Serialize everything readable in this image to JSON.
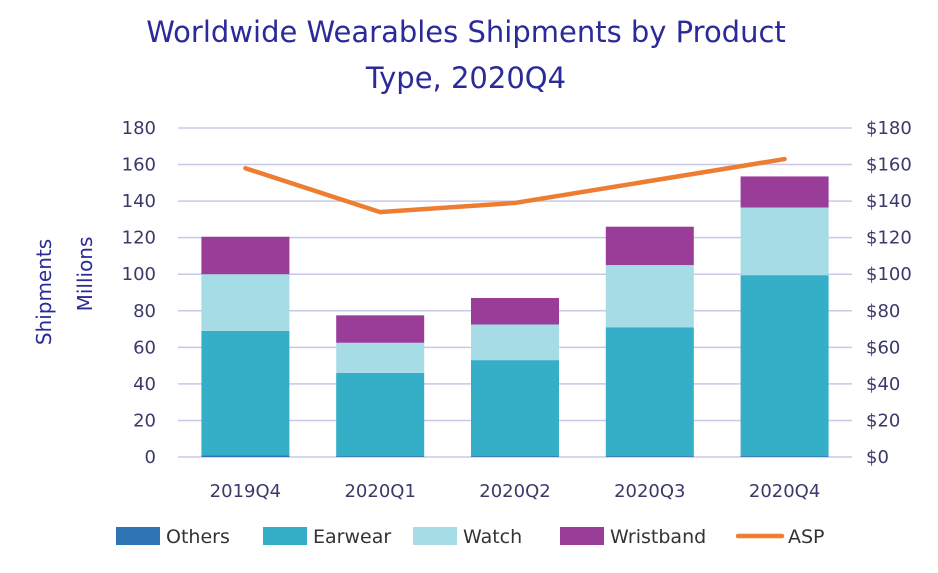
{
  "colors": {
    "Others": "#2e75b6",
    "Earwear": "#34afc7",
    "Watch": "#a6dce6",
    "Wristband": "#993d99",
    "ASP": "#ed7d31",
    "title": "#2b2a99",
    "grid": "#c8c8e8"
  },
  "chart_data": {
    "type": "bar",
    "stacked": true,
    "title_line1": "Worldwide Wearables Shipments by Product",
    "title_line2": "Type, 2020Q4",
    "ylabel": "Shipments",
    "ylabel_unit": "Millions",
    "categories": [
      "2019Q4",
      "2020Q1",
      "2020Q2",
      "2020Q3",
      "2020Q4"
    ],
    "series": [
      {
        "name": "Others",
        "values": [
          1,
          0.5,
          0.5,
          0.5,
          0.5
        ]
      },
      {
        "name": "Earwear",
        "values": [
          68,
          45.5,
          52.5,
          70.5,
          99
        ]
      },
      {
        "name": "Watch",
        "values": [
          31,
          16.5,
          19.5,
          34,
          37
        ]
      },
      {
        "name": "Wristband",
        "values": [
          20.5,
          15,
          14.5,
          21,
          17
        ]
      }
    ],
    "line_series": {
      "name": "ASP",
      "axis": "right",
      "values": [
        158,
        134,
        139,
        151,
        163
      ]
    },
    "ylim": [
      0,
      180
    ],
    "yticks": [
      "0",
      "20",
      "40",
      "60",
      "80",
      "100",
      "120",
      "140",
      "160",
      "180"
    ],
    "y2lim": [
      0,
      180
    ],
    "y2ticks": [
      "$0",
      "$20",
      "$40",
      "$60",
      "$80",
      "$100",
      "$120",
      "$140",
      "$160",
      "$180"
    ],
    "grid": true,
    "legend_position": "bottom",
    "legend": [
      "Others",
      "Earwear",
      "Watch",
      "Wristband",
      "ASP"
    ]
  }
}
